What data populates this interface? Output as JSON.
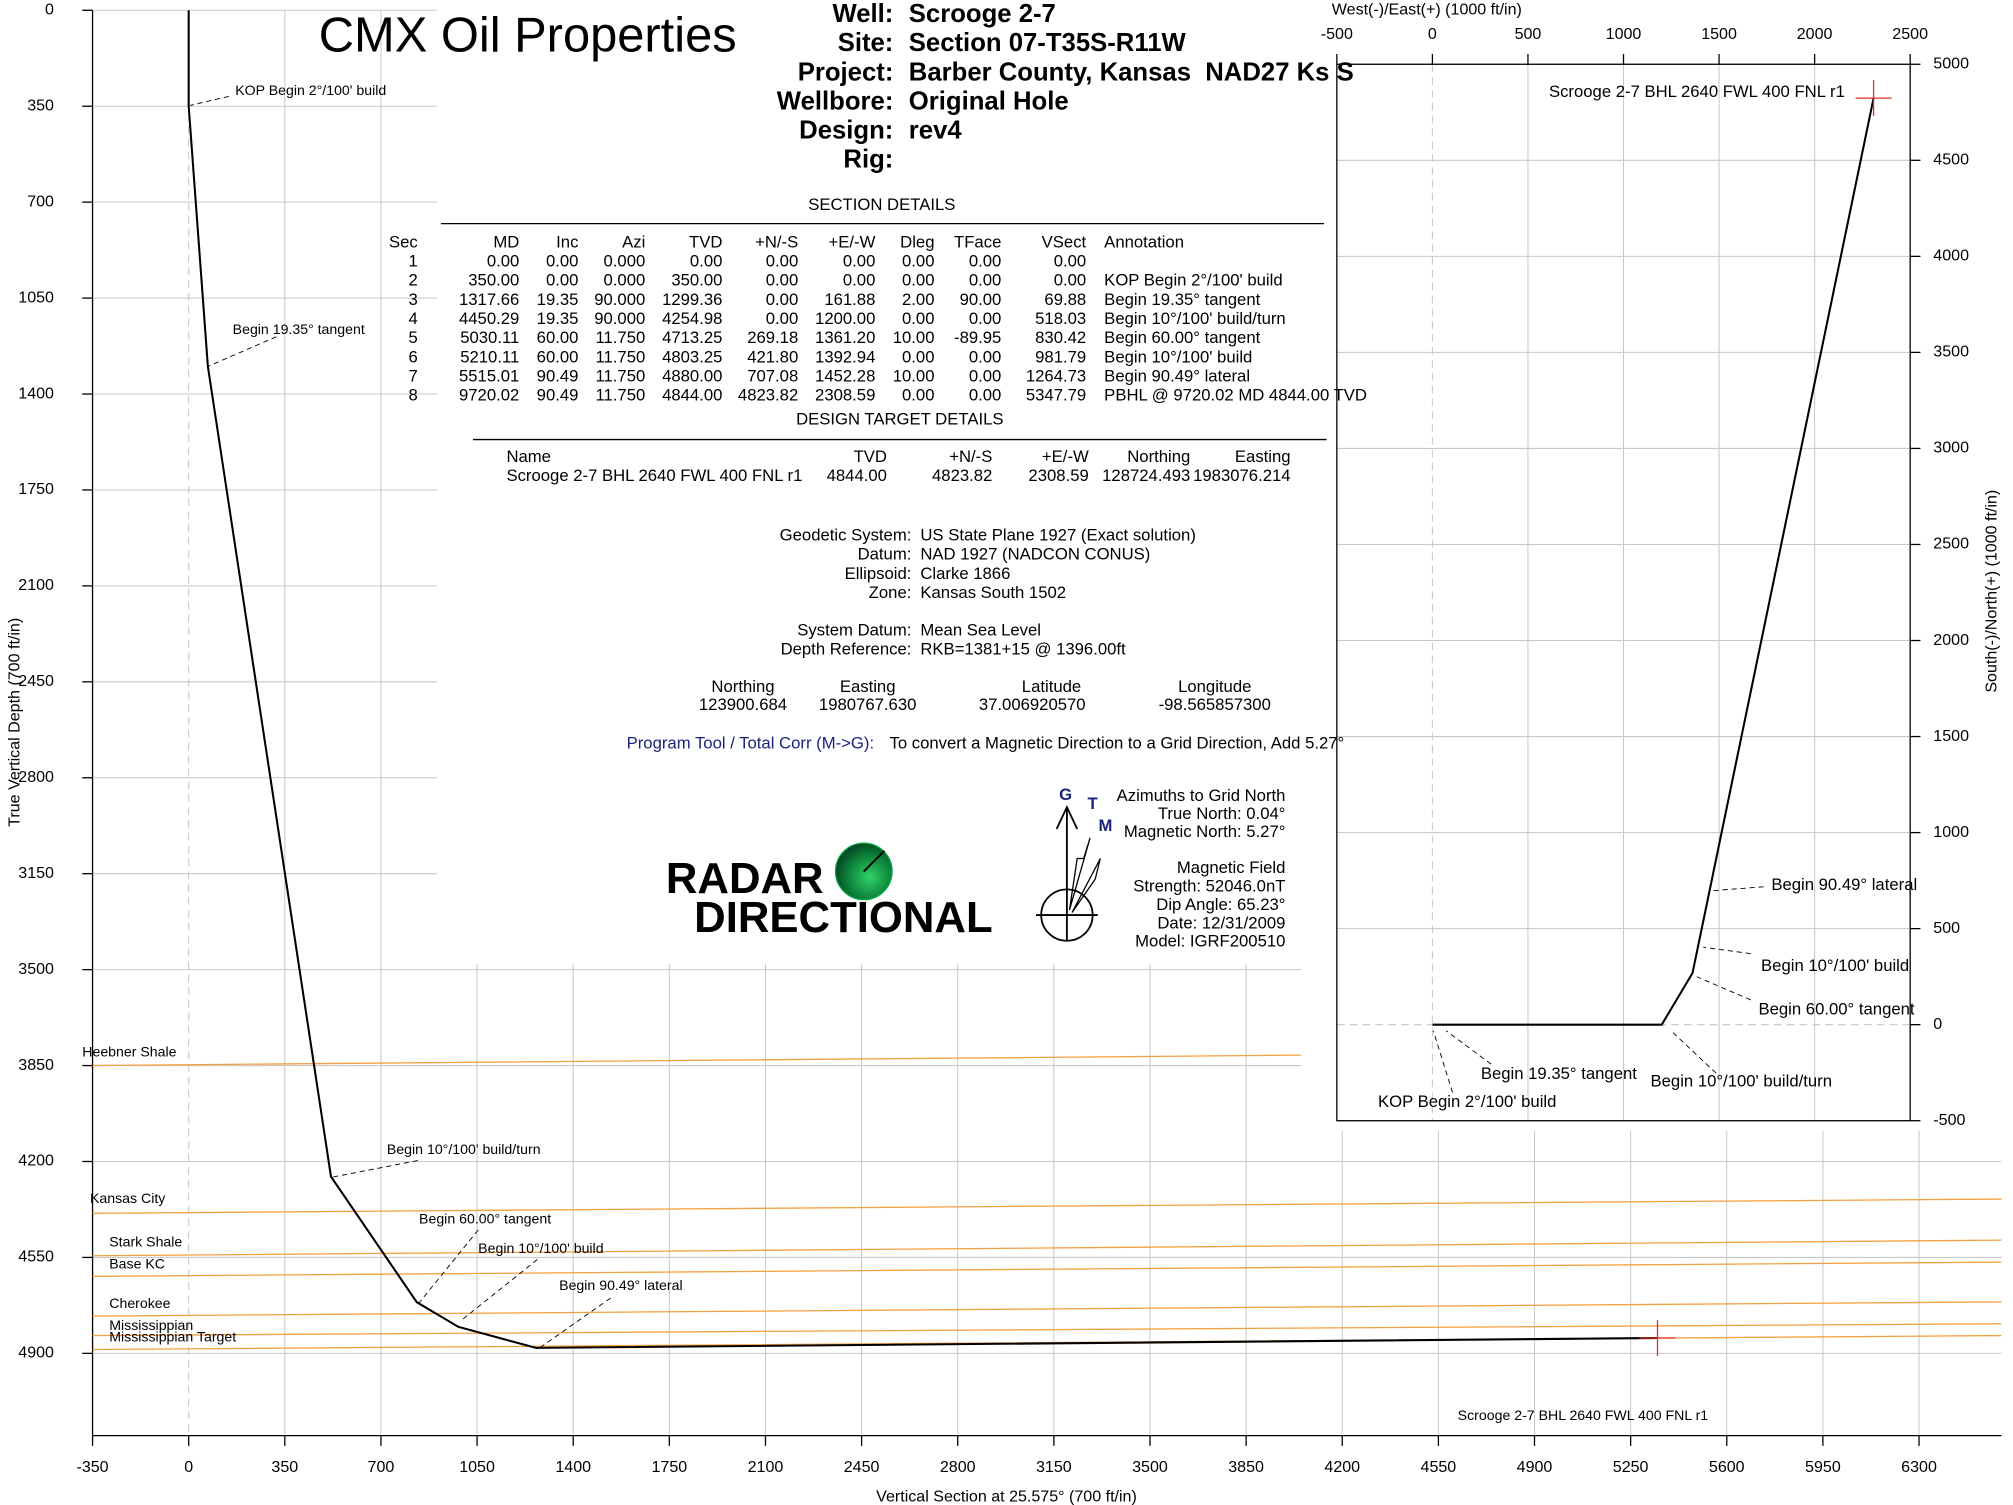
{
  "title": "CMX Oil Properties",
  "well_info": [
    {
      "label": "Well:",
      "value": "Scrooge 2-7"
    },
    {
      "label": "Site:",
      "value": "Section 07-T35S-R11W"
    },
    {
      "label": "Project:",
      "value": "Barber County, Kansas  NAD27 Ks S"
    },
    {
      "label": "Wellbore:",
      "value": "Original Hole"
    },
    {
      "label": "Design:",
      "value": "rev4"
    },
    {
      "label": "Rig:"
    }
  ],
  "section_details": {
    "title": "SECTION DETAILS",
    "columns": [
      "Sec",
      "MD",
      "Inc",
      "Azi",
      "TVD",
      "+N/-S",
      "+E/-W",
      "Dleg",
      "TFace",
      "VSect",
      "Annotation"
    ],
    "rows": [
      [
        "1",
        "0.00",
        "0.00",
        "0.000",
        "0.00",
        "0.00",
        "0.00",
        "0.00",
        "0.00",
        "0.00"
      ],
      [
        "2",
        "350.00",
        "0.00",
        "0.000",
        "350.00",
        "0.00",
        "0.00",
        "0.00",
        "0.00",
        "0.00",
        "KOP Begin 2°/100' build"
      ],
      [
        "3",
        "1317.66",
        "19.35",
        "90.000",
        "1299.36",
        "0.00",
        "161.88",
        "2.00",
        "90.00",
        "69.88",
        "Begin 19.35° tangent"
      ],
      [
        "4",
        "4450.29",
        "19.35",
        "90.000",
        "4254.98",
        "0.00",
        "1200.00",
        "0.00",
        "0.00",
        "518.03",
        "Begin 10°/100' build/turn"
      ],
      [
        "5",
        "5030.11",
        "60.00",
        "11.750",
        "4713.25",
        "269.18",
        "1361.20",
        "10.00",
        "-89.95",
        "830.42",
        "Begin 60.00° tangent"
      ],
      [
        "6",
        "5210.11",
        "60.00",
        "11.750",
        "4803.25",
        "421.80",
        "1392.94",
        "0.00",
        "0.00",
        "981.79",
        "Begin 10°/100' build"
      ],
      [
        "7",
        "5515.01",
        "90.49",
        "11.750",
        "4880.00",
        "707.08",
        "1452.28",
        "10.00",
        "0.00",
        "1264.73",
        "Begin 90.49° lateral"
      ],
      [
        "8",
        "9720.02",
        "90.49",
        "11.750",
        "4844.00",
        "4823.82",
        "2308.59",
        "0.00",
        "0.00",
        "5347.79",
        "PBHL @ 9720.02 MD 4844.00 TVD"
      ]
    ]
  },
  "target_details": {
    "title": "DESIGN TARGET DETAILS",
    "columns": [
      "Name",
      "TVD",
      "+N/-S",
      "+E/-W",
      "Northing",
      "Easting"
    ],
    "rows": [
      [
        "Scrooge 2-7 BHL 2640 FWL 400 FNL r1",
        "4844.00",
        "4823.82",
        "2308.59",
        "128724.493",
        "1983076.214"
      ]
    ]
  },
  "geodetic": [
    {
      "label": "Geodetic System:",
      "value": "US State Plane 1927 (Exact solution)"
    },
    {
      "label": "Datum:",
      "value": "NAD 1927 (NADCON CONUS)"
    },
    {
      "label": "Ellipsoid:",
      "value": "Clarke 1866"
    },
    {
      "label": "Zone:",
      "value": "Kansas South 1502"
    }
  ],
  "datum": [
    {
      "label": "System Datum:",
      "value": "Mean Sea Level"
    },
    {
      "label": "Depth Reference:",
      "value": "RKB=1381+15 @ 1396.00ft"
    }
  ],
  "location": {
    "columns": [
      "Northing",
      "Easting",
      "Latitude",
      "Longitude"
    ],
    "values": [
      "123900.684",
      "1980767.630",
      "37.006920570",
      "-98.565857300"
    ]
  },
  "correction": {
    "label": "Program Tool / Total Corr (M->G):",
    "text": "To convert a Magnetic Direction to a Grid Direction, Add 5.27°"
  },
  "logo": [
    "RADAR",
    "DIRECTIONAL"
  ],
  "north_arrow": [
    "G",
    "T",
    "M"
  ],
  "azimuths": [
    "Azimuths to Grid North",
    "True North: 0.04°",
    "Magnetic North: 5.27°"
  ],
  "magnetic_field": [
    "Magnetic Field",
    "Strength: 52046.0nT",
    "Dip Angle: 65.23°",
    "Date: 12/31/2009",
    "Model: IGRF200510"
  ],
  "chart_data": [
    {
      "type": "line",
      "xlabel": "Vertical Section at 25.575° (700 ft/in)",
      "ylabel": "True Vertical Depth (700 ft/in)",
      "xlim": [
        -350,
        6600
      ],
      "ylim": [
        0,
        5200
      ],
      "invert_y": true,
      "grid": true,
      "xticks": [
        -350,
        0,
        350,
        700,
        1050,
        1400,
        1750,
        2100,
        2450,
        2800,
        3150,
        3500,
        3850,
        4200,
        4550,
        4900,
        5250,
        5600,
        5950,
        6300
      ],
      "yticks": [
        0,
        350,
        700,
        1050,
        1400,
        1750,
        2100,
        2450,
        2800,
        3150,
        3500,
        3850,
        4200,
        4550,
        4900
      ],
      "series": [
        {
          "color": "#000000",
          "x": [
            0,
            0,
            69.88,
            518.03,
            830.42,
            981.79,
            1264.73,
            5347.79
          ],
          "values": [
            0,
            350,
            1299.36,
            4254.98,
            4713.25,
            4803.25,
            4880,
            4844
          ]
        },
        {
          "name": "Heebner Shale",
          "color": "#f5a040",
          "x": [
            -350,
            6600
          ],
          "values": [
            3850,
            3790
          ]
        },
        {
          "name": "Kansas City",
          "color": "#f5a040",
          "x": [
            -350,
            6600
          ],
          "values": [
            4389,
            4337
          ]
        },
        {
          "name": "Stark Shale",
          "color": "#f5a040",
          "x": [
            -350,
            6600
          ],
          "values": [
            4544,
            4487
          ]
        },
        {
          "name": "Base KC",
          "color": "#f5a040",
          "x": [
            -350,
            6600
          ],
          "values": [
            4619,
            4567
          ]
        },
        {
          "name": "Cherokee",
          "color": "#f5a040",
          "x": [
            -350,
            6600
          ],
          "values": [
            4764,
            4712
          ]
        },
        {
          "name": "Mississippian",
          "color": "#f5a040",
          "x": [
            -350,
            6600
          ],
          "values": [
            4835,
            4792
          ]
        },
        {
          "name": "Mississippian Target",
          "color": "#f5a040",
          "x": [
            -350,
            6600
          ],
          "values": [
            4886,
            4835
          ]
        }
      ],
      "targets": [
        {
          "x": 5347.79,
          "y": 4844,
          "color": "#e0302a"
        }
      ],
      "annotations": [
        "KOP Begin 2°/100' build",
        "Begin 19.35° tangent",
        "Begin 10°/100' build/turn",
        "Begin 60.00° tangent",
        "Begin 10°/100' build",
        "Begin 90.49° lateral",
        "Scrooge 2-7 BHL 2640 FWL 400 FNL r1"
      ]
    },
    {
      "type": "line",
      "xlabel": "West(-)/East(+) (1000 ft/in)",
      "ylabel": "South(-)/North(+) (1000 ft/in)",
      "xlim": [
        -500,
        2500
      ],
      "ylim": [
        -500,
        5000
      ],
      "grid": true,
      "xticks": [
        -500,
        0,
        500,
        1000,
        1500,
        2000,
        2500
      ],
      "yticks": [
        -500,
        0,
        500,
        1000,
        1500,
        2000,
        2500,
        3000,
        3500,
        4000,
        4500,
        5000
      ],
      "series": [
        {
          "color": "#000000",
          "x": [
            0,
            0,
            161.88,
            1200,
            1361.2,
            1392.94,
            1452.28,
            2308.59
          ],
          "values": [
            0,
            0,
            0,
            0,
            269.18,
            421.8,
            707.08,
            4823.82
          ]
        }
      ],
      "targets": [
        {
          "x": 2308.59,
          "y": 4823.82,
          "color": "#e0302a"
        }
      ],
      "annotations": [
        "Scrooge 2-7 BHL 2640 FWL 400 FNL r1",
        "Begin 90.49° lateral",
        "Begin 10°/100' build",
        "Begin 60.00° tangent",
        "Begin 19.35° tangent",
        "KOP Begin 2°/100' build",
        "Begin 10°/100' build/turn"
      ]
    }
  ]
}
